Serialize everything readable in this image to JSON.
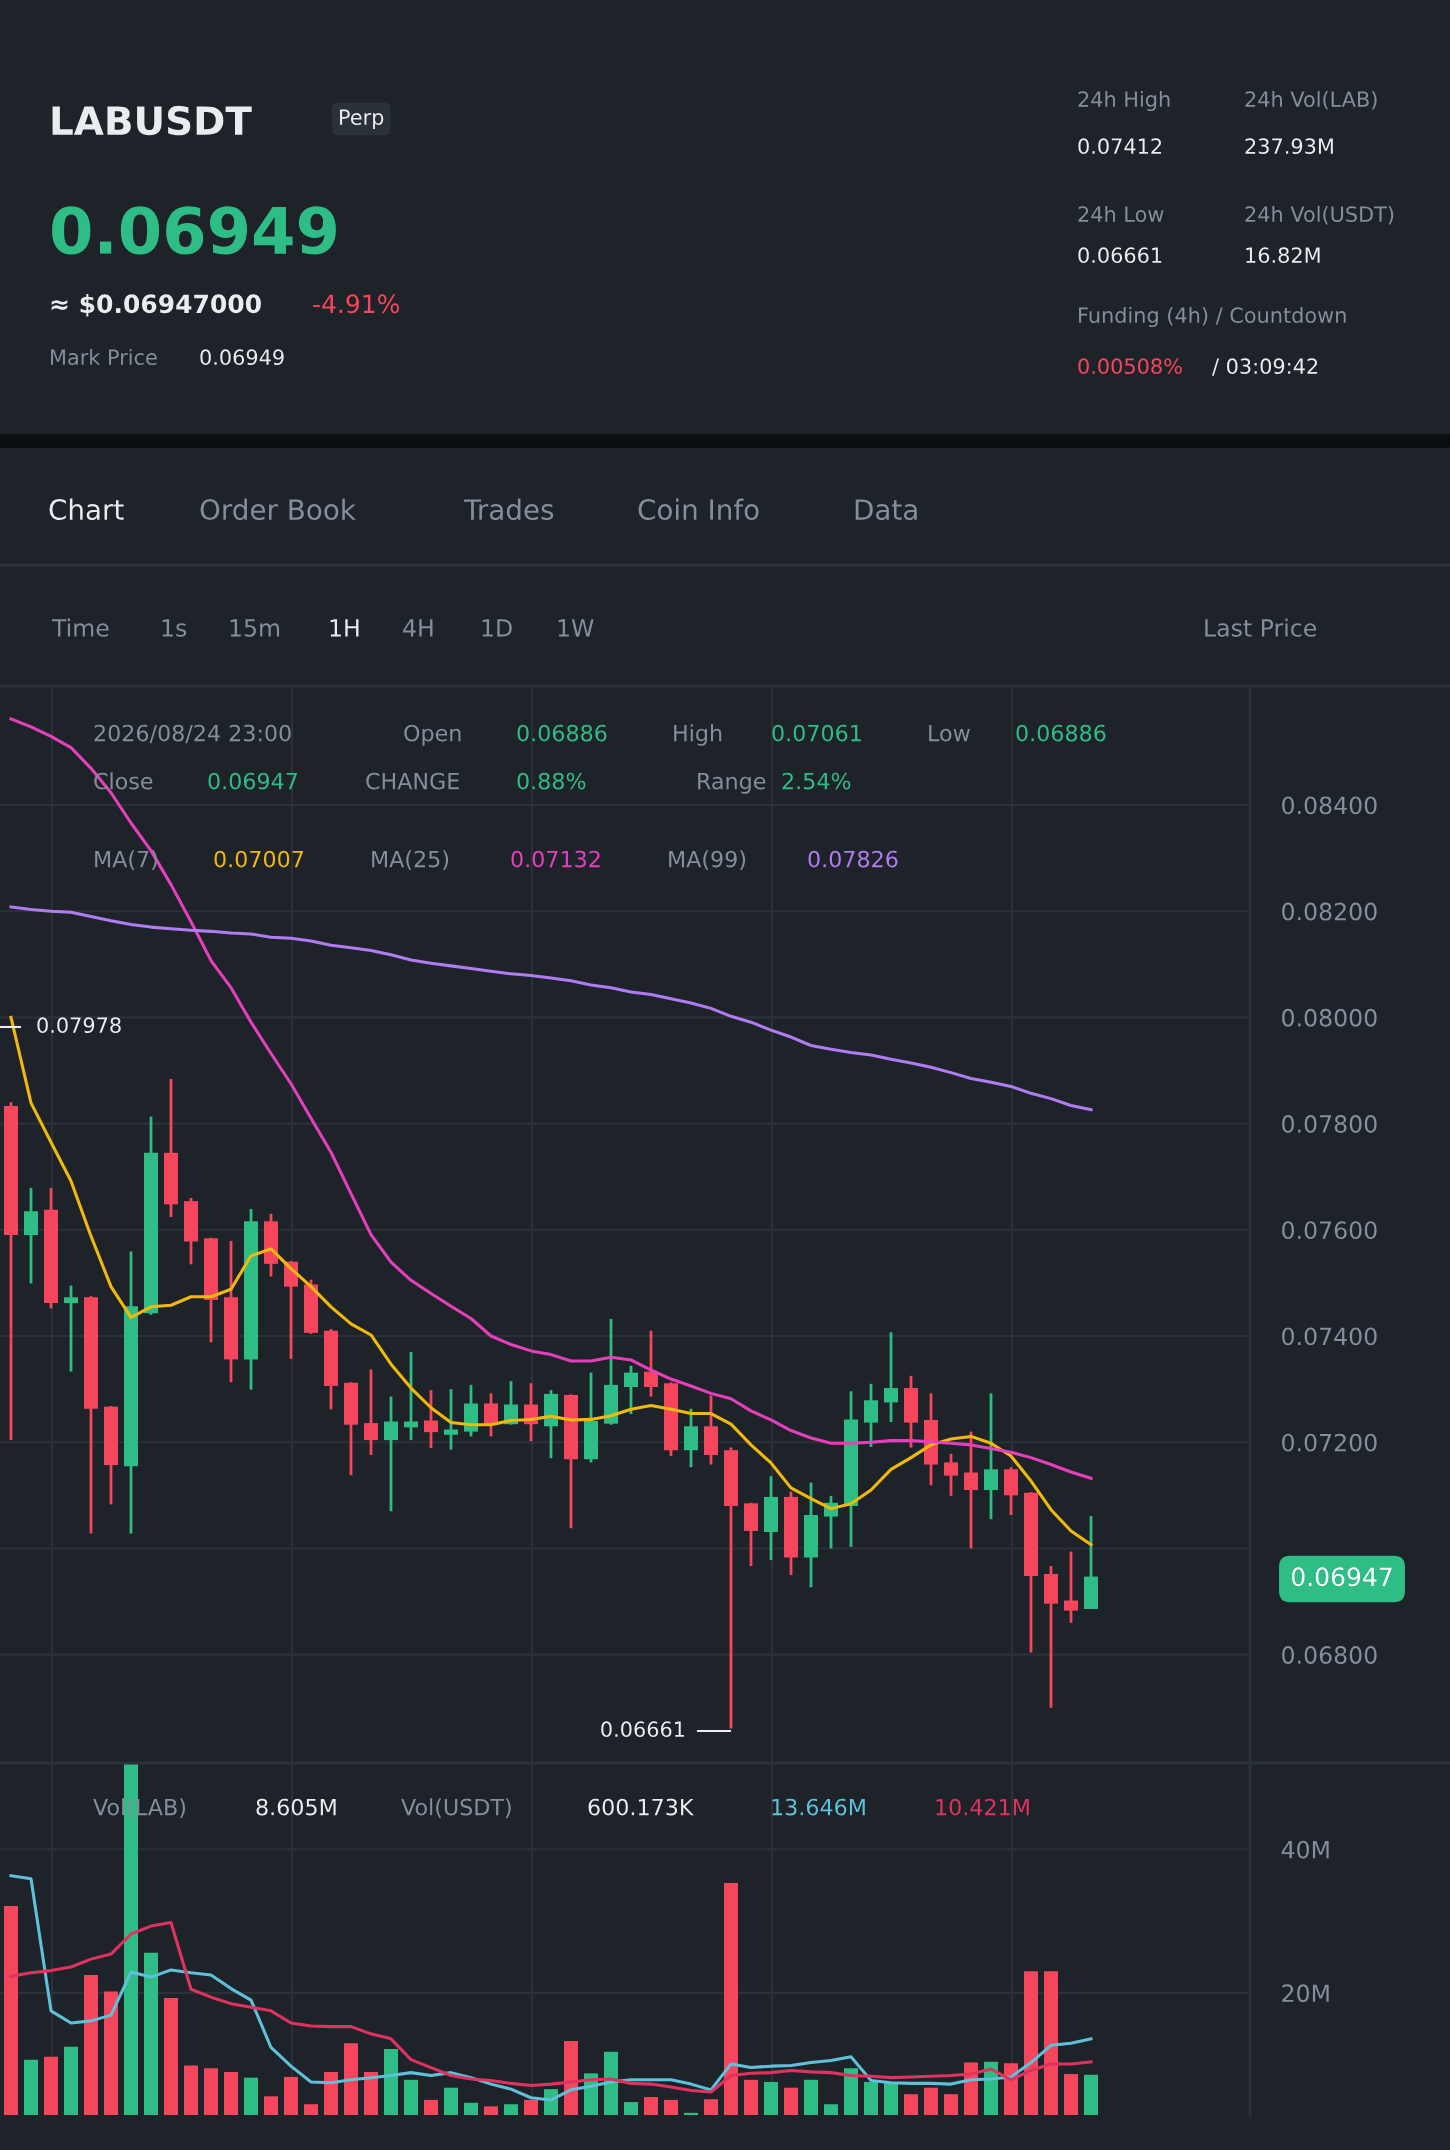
{
  "chart_data": [
    {
      "type": "candlestick",
      "title": "LABUSDT",
      "categories": [
        null,
        null,
        null,
        null,
        null,
        null,
        null,
        null,
        null,
        null,
        null,
        null,
        null,
        null,
        null,
        null,
        null,
        null,
        null,
        null,
        null,
        null,
        null,
        null,
        null,
        null,
        null,
        null,
        null,
        null,
        null,
        null,
        null,
        null,
        null,
        null,
        null,
        null,
        null,
        null,
        null,
        null,
        null,
        null,
        null,
        null,
        null,
        null,
        null,
        null,
        null,
        null,
        null,
        null,
        null
      ],
      "ohlc": [
        [
          0.07833,
          0.0784,
          0.07204,
          0.0759
        ],
        [
          0.0759,
          0.07679,
          0.07499,
          0.07635
        ],
        [
          0.07638,
          0.07679,
          0.07452,
          0.07462
        ],
        [
          0.07462,
          0.07495,
          0.07333,
          0.07473
        ],
        [
          0.07473,
          0.07475,
          0.07028,
          0.07263
        ],
        [
          0.07267,
          0.07268,
          0.07083,
          0.07157
        ],
        [
          0.07155,
          0.07559,
          0.07028,
          0.07456
        ],
        [
          0.07443,
          0.07813,
          0.0744,
          0.07745
        ],
        [
          0.07745,
          0.07884,
          0.07624,
          0.07648
        ],
        [
          0.07654,
          0.0766,
          0.07535,
          0.07578
        ],
        [
          0.07584,
          0.07585,
          0.07388,
          0.07468
        ],
        [
          0.07473,
          0.07579,
          0.07313,
          0.07356
        ],
        [
          0.07356,
          0.07639,
          0.07299,
          0.07616
        ],
        [
          0.07616,
          0.0763,
          0.07512,
          0.07536
        ],
        [
          0.0754,
          0.07541,
          0.07357,
          0.07493
        ],
        [
          0.07497,
          0.07506,
          0.07404,
          0.07406
        ],
        [
          0.0741,
          0.07413,
          0.07262,
          0.07306
        ],
        [
          0.07312,
          0.07313,
          0.07138,
          0.07233
        ],
        [
          0.07236,
          0.07337,
          0.07176,
          0.07204
        ],
        [
          0.07204,
          0.07286,
          0.0707,
          0.07239
        ],
        [
          0.07228,
          0.0737,
          0.07204,
          0.07239
        ],
        [
          0.07241,
          0.07298,
          0.07189,
          0.07219
        ],
        [
          0.07214,
          0.073,
          0.07186,
          0.07224
        ],
        [
          0.0722,
          0.07308,
          0.07211,
          0.07273
        ],
        [
          0.07273,
          0.07292,
          0.07211,
          0.07234
        ],
        [
          0.07234,
          0.07315,
          0.07233,
          0.07271
        ],
        [
          0.07271,
          0.07311,
          0.07202,
          0.07234
        ],
        [
          0.0723,
          0.07298,
          0.0717,
          0.07291
        ],
        [
          0.07289,
          0.0729,
          0.07038,
          0.07168
        ],
        [
          0.07168,
          0.07331,
          0.07162,
          0.0724
        ],
        [
          0.07235,
          0.07432,
          0.07233,
          0.07308
        ],
        [
          0.07304,
          0.07344,
          0.07253,
          0.07331
        ],
        [
          0.07333,
          0.0741,
          0.07286,
          0.07304
        ],
        [
          0.07311,
          0.07313,
          0.07174,
          0.07185
        ],
        [
          0.07185,
          0.07263,
          0.07153,
          0.0723
        ],
        [
          0.0723,
          0.07288,
          0.07158,
          0.07176
        ],
        [
          0.07185,
          0.0719,
          0.06661,
          0.0708
        ],
        [
          0.07085,
          0.07086,
          0.06967,
          0.07033
        ],
        [
          0.07031,
          0.07136,
          0.06978,
          0.07097
        ],
        [
          0.07097,
          0.07107,
          0.0695,
          0.06983
        ],
        [
          0.06983,
          0.07124,
          0.06927,
          0.07063
        ],
        [
          0.0706,
          0.07099,
          0.07,
          0.07086
        ],
        [
          0.0708,
          0.07296,
          0.07003,
          0.07243
        ],
        [
          0.07237,
          0.0731,
          0.07191,
          0.07279
        ],
        [
          0.07275,
          0.07407,
          0.07238,
          0.07302
        ],
        [
          0.07302,
          0.07325,
          0.0719,
          0.07237
        ],
        [
          0.07242,
          0.07292,
          0.07119,
          0.07158
        ],
        [
          0.07162,
          0.07178,
          0.07099,
          0.07137
        ],
        [
          0.07143,
          0.0722,
          0.07,
          0.0711
        ],
        [
          0.0711,
          0.07292,
          0.07055,
          0.07149
        ],
        [
          0.07149,
          0.07153,
          0.07063,
          0.071
        ],
        [
          0.07105,
          0.07106,
          0.06804,
          0.06948
        ],
        [
          0.06952,
          0.06967,
          0.067,
          0.06896
        ],
        [
          0.06902,
          0.06994,
          0.0686,
          0.06883
        ],
        [
          0.06886,
          0.07061,
          0.06886,
          0.06947
        ]
      ],
      "colors": [
        "#f6465d",
        "#2ebd85",
        "#f6465d",
        "#2ebd85",
        "#f6465d",
        "#f6465d",
        "#2ebd85",
        "#2ebd85",
        "#f6465d",
        "#f6465d",
        "#f6465d",
        "#f6465d",
        "#2ebd85",
        "#f6465d",
        "#f6465d",
        "#f6465d",
        "#f6465d",
        "#f6465d",
        "#f6465d",
        "#2ebd85",
        "#2ebd85",
        "#f6465d",
        "#2ebd85",
        "#2ebd85",
        "#f6465d",
        "#2ebd85",
        "#f6465d",
        "#2ebd85",
        "#f6465d",
        "#2ebd85",
        "#2ebd85",
        "#2ebd85",
        "#f6465d",
        "#f6465d",
        "#2ebd85",
        "#f6465d",
        "#f6465d",
        "#f6465d",
        "#2ebd85",
        "#f6465d",
        "#2ebd85",
        "#2ebd85",
        "#2ebd85",
        "#2ebd85",
        "#2ebd85",
        "#f6465d",
        "#f6465d",
        "#f6465d",
        "#f6465d",
        "#2ebd85",
        "#f6465d",
        "#f6465d",
        "#f6465d",
        "#f6465d",
        "#2ebd85"
      ],
      "series": [
        {
          "type": "line",
          "color": "#f0b90b",
          "values": [
            0.08,
            0.07839,
            0.07765,
            0.07692,
            0.07588,
            0.07493,
            0.07435,
            0.07455,
            0.07458,
            0.07474,
            0.07474,
            0.07488,
            0.07551,
            0.07564,
            0.07527,
            0.07493,
            0.07455,
            0.07423,
            0.07402,
            0.07347,
            0.07302,
            0.07265,
            0.07237,
            0.07233,
            0.07233,
            0.07241,
            0.07243,
            0.07249,
            0.07242,
            0.07243,
            0.0725,
            0.07262,
            0.07269,
            0.07262,
            0.07254,
            0.07254,
            0.07234,
            0.07195,
            0.07161,
            0.07114,
            0.07094,
            0.07075,
            0.07084,
            0.0711,
            0.07149,
            0.07171,
            0.07195,
            0.07206,
            0.07211,
            0.07198,
            0.07174,
            0.07127,
            0.07073,
            0.07033,
            0.07007
          ]
        },
        {
          "type": "line",
          "color": "#e63fbc",
          "values": [
            0.08562,
            0.08547,
            0.08529,
            0.08508,
            0.08469,
            0.08423,
            0.08366,
            0.08314,
            0.0825,
            0.0818,
            0.08107,
            0.08056,
            0.07991,
            0.07932,
            0.07875,
            0.0781,
            0.07746,
            0.07668,
            0.07591,
            0.07539,
            0.07505,
            0.0748,
            0.07456,
            0.07433,
            0.074,
            0.07384,
            0.07372,
            0.07365,
            0.07353,
            0.07353,
            0.0736,
            0.07355,
            0.07336,
            0.07319,
            0.07306,
            0.07292,
            0.07282,
            0.07259,
            0.07242,
            0.07222,
            0.07208,
            0.07198,
            0.07198,
            0.072,
            0.07203,
            0.07203,
            0.07201,
            0.07198,
            0.07195,
            0.07188,
            0.07181,
            0.07171,
            0.07158,
            0.07144,
            0.07132
          ]
        },
        {
          "type": "line",
          "color": "#b07cf2",
          "values": [
            0.08208,
            0.08203,
            0.082,
            0.08198,
            0.0819,
            0.08182,
            0.08175,
            0.0817,
            0.08167,
            0.08164,
            0.08162,
            0.08159,
            0.08157,
            0.08151,
            0.08149,
            0.08144,
            0.08136,
            0.08131,
            0.08126,
            0.08118,
            0.08108,
            0.08102,
            0.08097,
            0.08092,
            0.08087,
            0.08082,
            0.08079,
            0.08074,
            0.08069,
            0.08061,
            0.08056,
            0.08048,
            0.08043,
            0.08035,
            0.08027,
            0.08017,
            0.08002,
            0.07991,
            0.07976,
            0.07963,
            0.07947,
            0.0794,
            0.07934,
            0.07929,
            0.07921,
            0.07914,
            0.07906,
            0.07896,
            0.07885,
            0.07878,
            0.0787,
            0.07857,
            0.07847,
            0.07834,
            0.07826
          ]
        }
      ],
      "ylim": [
        0.06596,
        0.08624
      ],
      "yticks": [
        {
          "value": 0.068,
          "label": "0.06800"
        },
        {
          "value": 0.07,
          "label": null
        },
        {
          "value": 0.072,
          "label": "0.07200"
        },
        {
          "value": 0.074,
          "label": "0.07400"
        },
        {
          "value": 0.076,
          "label": "0.07600"
        },
        {
          "value": 0.078,
          "label": "0.07800"
        },
        {
          "value": 0.08,
          "label": "0.08000"
        },
        {
          "value": 0.082,
          "label": "0.08200"
        },
        {
          "value": 0.084,
          "label": "0.08400"
        }
      ],
      "grid": true,
      "annotations": [
        "Perp",
        "0.06949",
        "≈ $0.06947000",
        "-4.91%",
        "Mark Price",
        "0.06949",
        "24h High",
        "0.07412",
        "24h Vol(LAB)",
        "237.93M",
        "24h Low",
        "0.06661",
        "24h Vol(USDT)",
        "16.82M",
        "Funding (4h) / Countdown",
        "0.00508%",
        "/ 03:09:42",
        "Chart",
        "Order Book",
        "Trades",
        "Coin Info",
        "Data",
        "Time",
        "1s",
        "15m",
        "1H",
        "4H",
        "1D",
        "1W",
        "Last Price",
        "2026/08/24 23:00",
        "Open",
        "0.06886",
        "High",
        "0.07061",
        "Low",
        "0.06886",
        "Close",
        "0.06947",
        "CHANGE",
        "0.88%",
        "Range",
        "2.54%",
        "MA(7)",
        "0.07007",
        "MA(25)",
        "0.07132",
        "MA(99)",
        "0.07826",
        "0.07978",
        "0.06661",
        "0.06947"
      ]
    },
    {
      "type": "bar",
      "categories": [
        null,
        null,
        null,
        null,
        null,
        null,
        null,
        null,
        null,
        null,
        null,
        null,
        null,
        null,
        null,
        null,
        null,
        null,
        null,
        null,
        null,
        null,
        null,
        null,
        null,
        null,
        null,
        null,
        null,
        null,
        null,
        null,
        null,
        null,
        null,
        null,
        null,
        null,
        null,
        null,
        null,
        null,
        null,
        null,
        null,
        null,
        null,
        null,
        null,
        null,
        null,
        null,
        null,
        null,
        null
      ],
      "series": [
        {
          "type": "bar",
          "values": [
            32.1,
            10.7,
            11.1,
            12.5,
            22.5,
            20.2,
            52,
            25.6,
            19.3,
            9.9,
            9.5,
            9.0,
            8.2,
            5.6,
            8.3,
            4.5,
            9.0,
            13.0,
            9.0,
            12.2,
            7.9,
            5.1,
            6.8,
            4.7,
            4.2,
            4.5,
            5.1,
            6.6,
            13.3,
            8.8,
            11.8,
            4.8,
            5.5,
            5.1,
            3.3,
            5.2,
            35.3,
            7.9,
            7.6,
            6.8,
            7.9,
            4.5,
            9.5,
            7.6,
            7.6,
            5.9,
            6.8,
            5.9,
            10.3,
            10.4,
            10.2,
            23.0,
            23.0,
            8.7,
            8.6
          ],
          "colors": [
            "#f6465d",
            "#2ebd85",
            "#f6465d",
            "#2ebd85",
            "#f6465d",
            "#f6465d",
            "#2ebd85",
            "#2ebd85",
            "#f6465d",
            "#f6465d",
            "#f6465d",
            "#f6465d",
            "#2ebd85",
            "#f6465d",
            "#f6465d",
            "#f6465d",
            "#f6465d",
            "#f6465d",
            "#f6465d",
            "#2ebd85",
            "#2ebd85",
            "#f6465d",
            "#2ebd85",
            "#2ebd85",
            "#f6465d",
            "#2ebd85",
            "#f6465d",
            "#2ebd85",
            "#f6465d",
            "#2ebd85",
            "#2ebd85",
            "#2ebd85",
            "#f6465d",
            "#f6465d",
            "#2ebd85",
            "#f6465d",
            "#f6465d",
            "#f6465d",
            "#2ebd85",
            "#f6465d",
            "#2ebd85",
            "#2ebd85",
            "#2ebd85",
            "#2ebd85",
            "#2ebd85",
            "#f6465d",
            "#f6465d",
            "#f6465d",
            "#f6465d",
            "#2ebd85",
            "#f6465d",
            "#f6465d",
            "#f6465d",
            "#f6465d",
            "#2ebd85"
          ]
        },
        {
          "type": "line",
          "color": "#5ec1d9",
          "values": [
            36.3,
            35.9,
            17.5,
            15.8,
            16.1,
            16.9,
            22.9,
            22.2,
            23.2,
            22.8,
            22.5,
            20.6,
            19.0,
            12.4,
            9.8,
            7.6,
            7.5,
            7.9,
            8.2,
            8.5,
            8.9,
            8.5,
            8.9,
            8.2,
            7.3,
            6.6,
            5.4,
            5.1,
            6.5,
            7.0,
            7.6,
            7.9,
            7.9,
            7.9,
            7.3,
            6.5,
            10.1,
            9.6,
            9.8,
            9.9,
            10.3,
            10.6,
            11.1,
            7.8,
            7.5,
            7.4,
            7.4,
            7.3,
            7.9,
            8.0,
            8.3,
            10.3,
            12.7,
            13.0,
            13.6
          ]
        },
        {
          "type": "line",
          "color": "#e0325f",
          "values": [
            22.3,
            22.8,
            23.1,
            23.6,
            24.7,
            25.4,
            28.2,
            29.3,
            29.8,
            20.5,
            19.4,
            18.5,
            18.0,
            17.5,
            15.8,
            15.4,
            15.3,
            15.3,
            14.3,
            13.6,
            10.7,
            9.6,
            8.5,
            8.0,
            7.8,
            7.4,
            7.1,
            7.3,
            7.6,
            7.9,
            8.0,
            7.4,
            7.3,
            6.9,
            6.4,
            6.2,
            8.5,
            8.8,
            8.9,
            9.2,
            9.0,
            8.9,
            8.5,
            8.4,
            8.2,
            8.3,
            8.4,
            8.5,
            8.7,
            9.4,
            7.9,
            9.2,
            10.1,
            10.1,
            10.4
          ]
        }
      ],
      "ylim": [
        3,
        52
      ],
      "yticks": [
        {
          "value": 20,
          "label": "20M"
        },
        {
          "value": 40,
          "label": "40M"
        }
      ],
      "grid": true,
      "annotations": [
        "Vol(LAB)",
        "8.605M",
        "Vol(USDT)",
        "600.173K",
        "13.646M",
        "10.421M"
      ]
    }
  ]
}
